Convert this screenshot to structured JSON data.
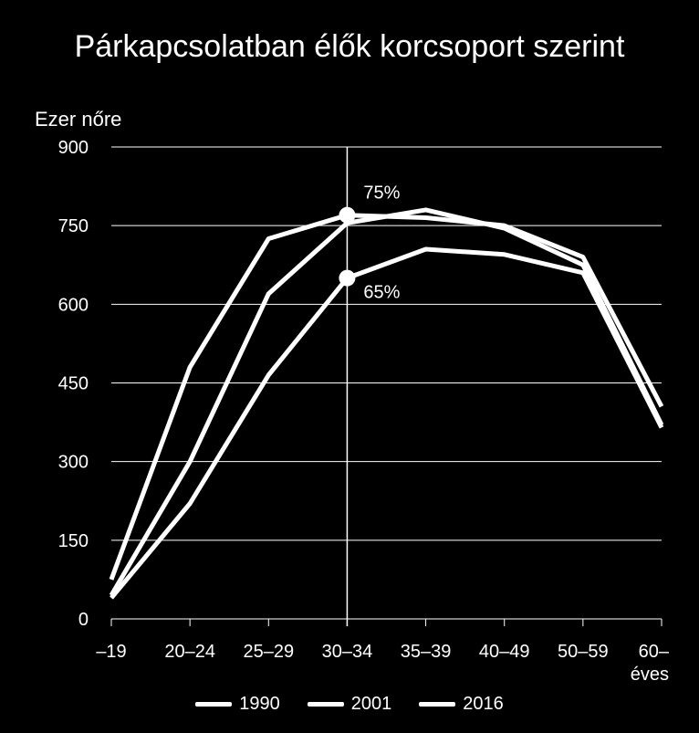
{
  "chart_data": {
    "type": "line",
    "title": "Párkapcsolatban élők korcsoport szerint",
    "ylabel": "Ezer nőre",
    "ylim": [
      0,
      900
    ],
    "yticks": [
      0,
      150,
      300,
      450,
      600,
      750,
      900
    ],
    "categories": [
      "–19",
      "20–24",
      "25–29",
      "30–34",
      "35–39",
      "40–49",
      "50–59",
      "60–\néves"
    ],
    "series": [
      {
        "name": "1990",
        "values": [
          75,
          480,
          725,
          770,
          765,
          750,
          690,
          405
        ]
      },
      {
        "name": "2001",
        "values": [
          45,
          300,
          620,
          755,
          780,
          745,
          675,
          370
        ]
      },
      {
        "name": "2016",
        "values": [
          40,
          220,
          465,
          650,
          705,
          695,
          660,
          365
        ]
      }
    ],
    "annotations": [
      {
        "category": "30–34",
        "value": 770,
        "label": "75%"
      },
      {
        "category": "30–34",
        "value": 650,
        "label": "65%"
      }
    ],
    "vline_category": "30–34",
    "grid": true,
    "legend": "bottom",
    "color": "#ffffff"
  }
}
